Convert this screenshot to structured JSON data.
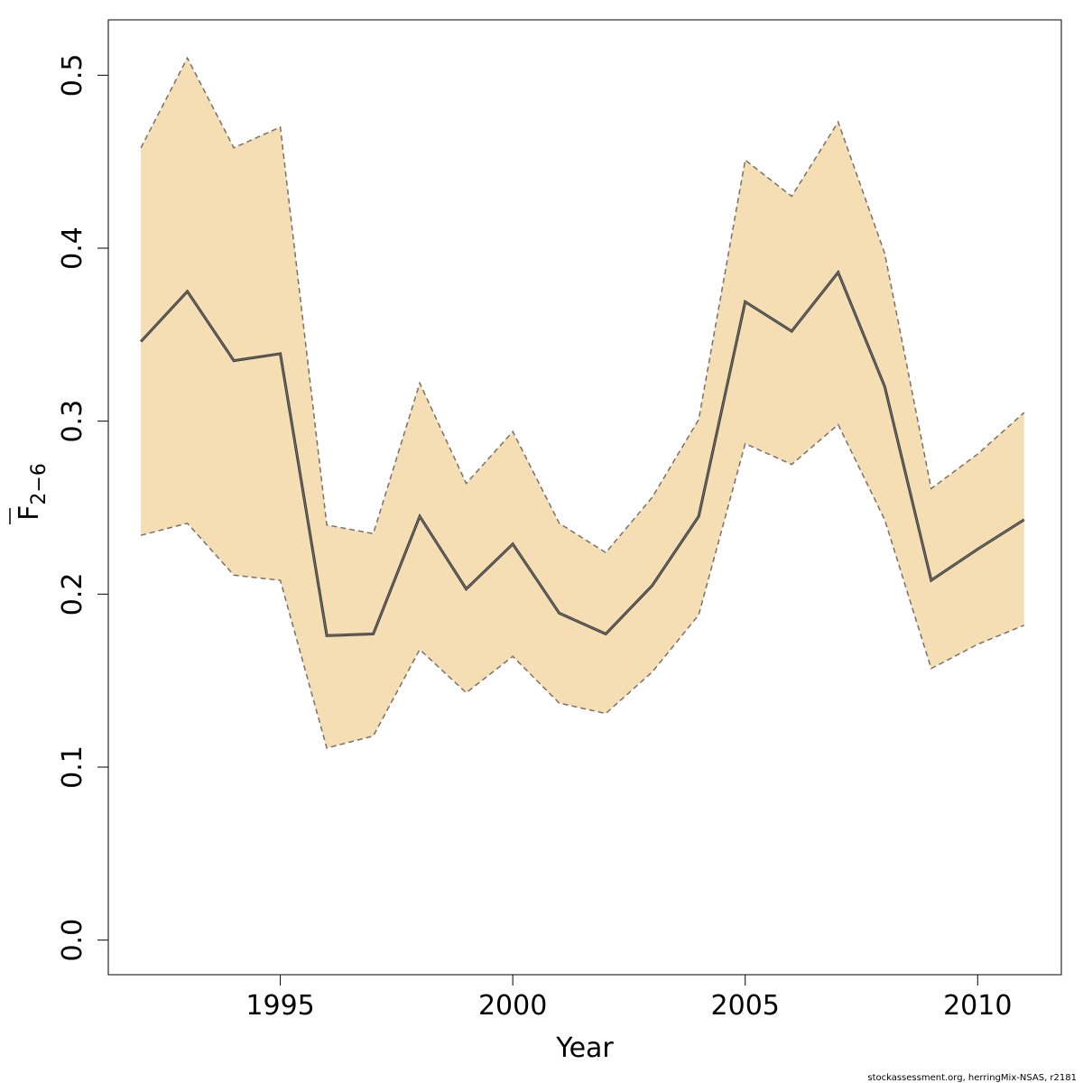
{
  "chart_data": {
    "type": "line",
    "title": "",
    "xlabel": "Year",
    "ylabel_main": "F",
    "ylabel_sub": "2−6",
    "xlim": [
      1991.3,
      2011.8
    ],
    "ylim": [
      -0.02,
      0.532
    ],
    "x_ticks": [
      {
        "value": 1995,
        "label": "1995"
      },
      {
        "value": 2000,
        "label": "2000"
      },
      {
        "value": 2005,
        "label": "2005"
      },
      {
        "value": 2010,
        "label": "2010"
      }
    ],
    "y_ticks": [
      {
        "value": 0.0,
        "label": "0.0"
      },
      {
        "value": 0.1,
        "label": "0.1"
      },
      {
        "value": 0.2,
        "label": "0.2"
      },
      {
        "value": 0.3,
        "label": "0.3"
      },
      {
        "value": 0.4,
        "label": "0.4"
      },
      {
        "value": 0.5,
        "label": "0.5"
      }
    ],
    "x": [
      1992,
      1993,
      1994,
      1995,
      1996,
      1997,
      1998,
      1999,
      2000,
      2001,
      2002,
      2003,
      2004,
      2005,
      2006,
      2007,
      2008,
      2009,
      2010,
      2011
    ],
    "series": [
      {
        "role": "estimate",
        "values": [
          0.346,
          0.375,
          0.335,
          0.339,
          0.176,
          0.177,
          0.245,
          0.203,
          0.229,
          0.189,
          0.177,
          0.205,
          0.245,
          0.369,
          0.352,
          0.386,
          0.32,
          0.208,
          0.226,
          0.243
        ]
      },
      {
        "role": "upper",
        "values": [
          0.458,
          0.51,
          0.458,
          0.47,
          0.24,
          0.235,
          0.322,
          0.264,
          0.294,
          0.241,
          0.224,
          0.256,
          0.301,
          0.451,
          0.43,
          0.473,
          0.397,
          0.261,
          0.281,
          0.305
        ]
      },
      {
        "role": "lower",
        "values": [
          0.234,
          0.241,
          0.211,
          0.208,
          0.111,
          0.118,
          0.168,
          0.143,
          0.164,
          0.137,
          0.131,
          0.155,
          0.188,
          0.287,
          0.275,
          0.298,
          0.243,
          0.157,
          0.171,
          0.182
        ]
      }
    ],
    "grid": false,
    "colors": {
      "band_fill": "#f5deb3",
      "band_edge": "#7a7068",
      "line": "#3a3a3a",
      "axis": "#000000"
    },
    "credit": "stockassessment.org, herringMix-NSAS, r2181"
  }
}
